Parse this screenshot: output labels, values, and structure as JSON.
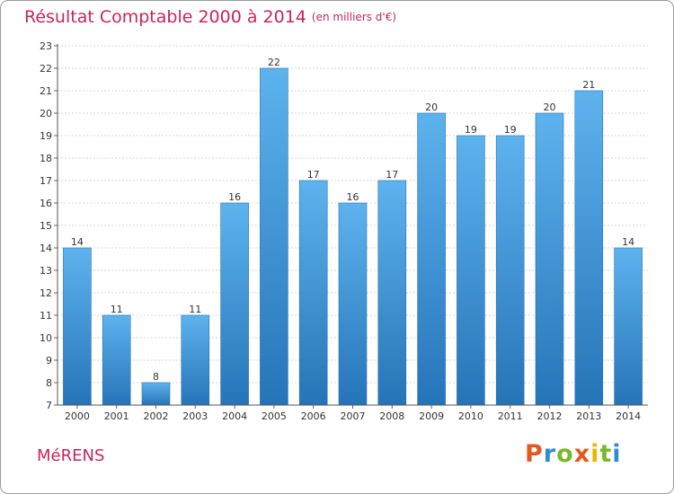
{
  "chart_data": {
    "type": "bar",
    "title": "Résultat Comptable 2000 à 2014",
    "subtitle": "(en milliers d'€)",
    "categories": [
      "2000",
      "2001",
      "2002",
      "2003",
      "2004",
      "2005",
      "2006",
      "2007",
      "2008",
      "2009",
      "2010",
      "2011",
      "2012",
      "2013",
      "2014"
    ],
    "values": [
      14,
      11,
      8,
      11,
      16,
      22,
      17,
      16,
      17,
      20,
      19,
      19,
      20,
      21,
      14
    ],
    "ylim": [
      7,
      23
    ],
    "yticks": [
      7,
      8,
      9,
      10,
      11,
      12,
      13,
      14,
      15,
      16,
      17,
      18,
      19,
      20,
      21,
      22,
      23
    ],
    "xlabel": "",
    "ylabel": "",
    "grid": true,
    "bar_color": "#3d8fd6",
    "title_color": "#c8245a"
  },
  "footer": {
    "city": "MéRENS",
    "brand": "Proxiti",
    "brand_colors": [
      "#e05a1f",
      "#2e8fd0",
      "#7bb82a",
      "#e05a1f",
      "#e8b800",
      "#7bb82a",
      "#2e8fd0"
    ]
  }
}
